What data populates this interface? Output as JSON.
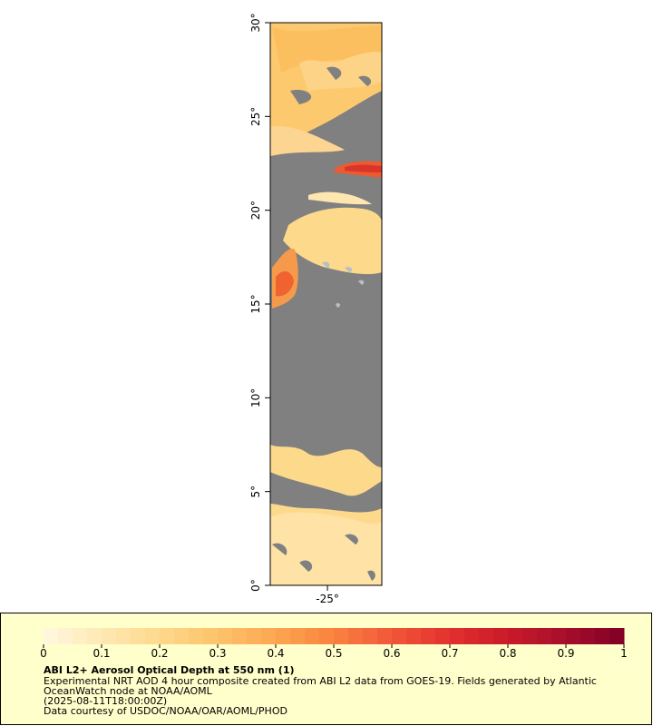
{
  "map": {
    "xlim": [
      -28.05,
      -22.1
    ],
    "ylim": [
      0,
      30
    ],
    "xticks": [
      {
        "value": -25,
        "label": "-25°"
      }
    ],
    "yticks": [
      {
        "value": 0,
        "label": "0°"
      },
      {
        "value": 5,
        "label": "5°"
      },
      {
        "value": 10,
        "label": "10°"
      },
      {
        "value": 15,
        "label": "15°"
      },
      {
        "value": 20,
        "label": "20°"
      },
      {
        "value": 25,
        "label": "25°"
      },
      {
        "value": 30,
        "label": "30°"
      }
    ]
  },
  "legend": {
    "colorbar": {
      "range": [
        0,
        1
      ],
      "ticks": [
        0,
        0.1,
        0.2,
        0.3,
        0.4,
        0.5,
        0.6,
        0.7,
        0.8,
        0.9,
        1
      ],
      "colors": [
        "#fff8e1",
        "#fee9b4",
        "#fdd98b",
        "#fdc36a",
        "#fca651",
        "#f9823f",
        "#f2573a",
        "#e2312d",
        "#c91a2b",
        "#a60e2b",
        "#800026"
      ]
    },
    "title": "ABI L2+ Aerosol Optical Depth at 550 nm (1)",
    "description": "Experimental NRT AOD 4 hour composite created from ABI L2 data from GOES-19. Fields generated by Atlantic OceanWatch node at NOAA/AOML",
    "time": "(2025-08-11T18:00:00Z)",
    "credit": "Data courtesy of USDOC/NOAA/OAR/AOML/PHOD"
  }
}
